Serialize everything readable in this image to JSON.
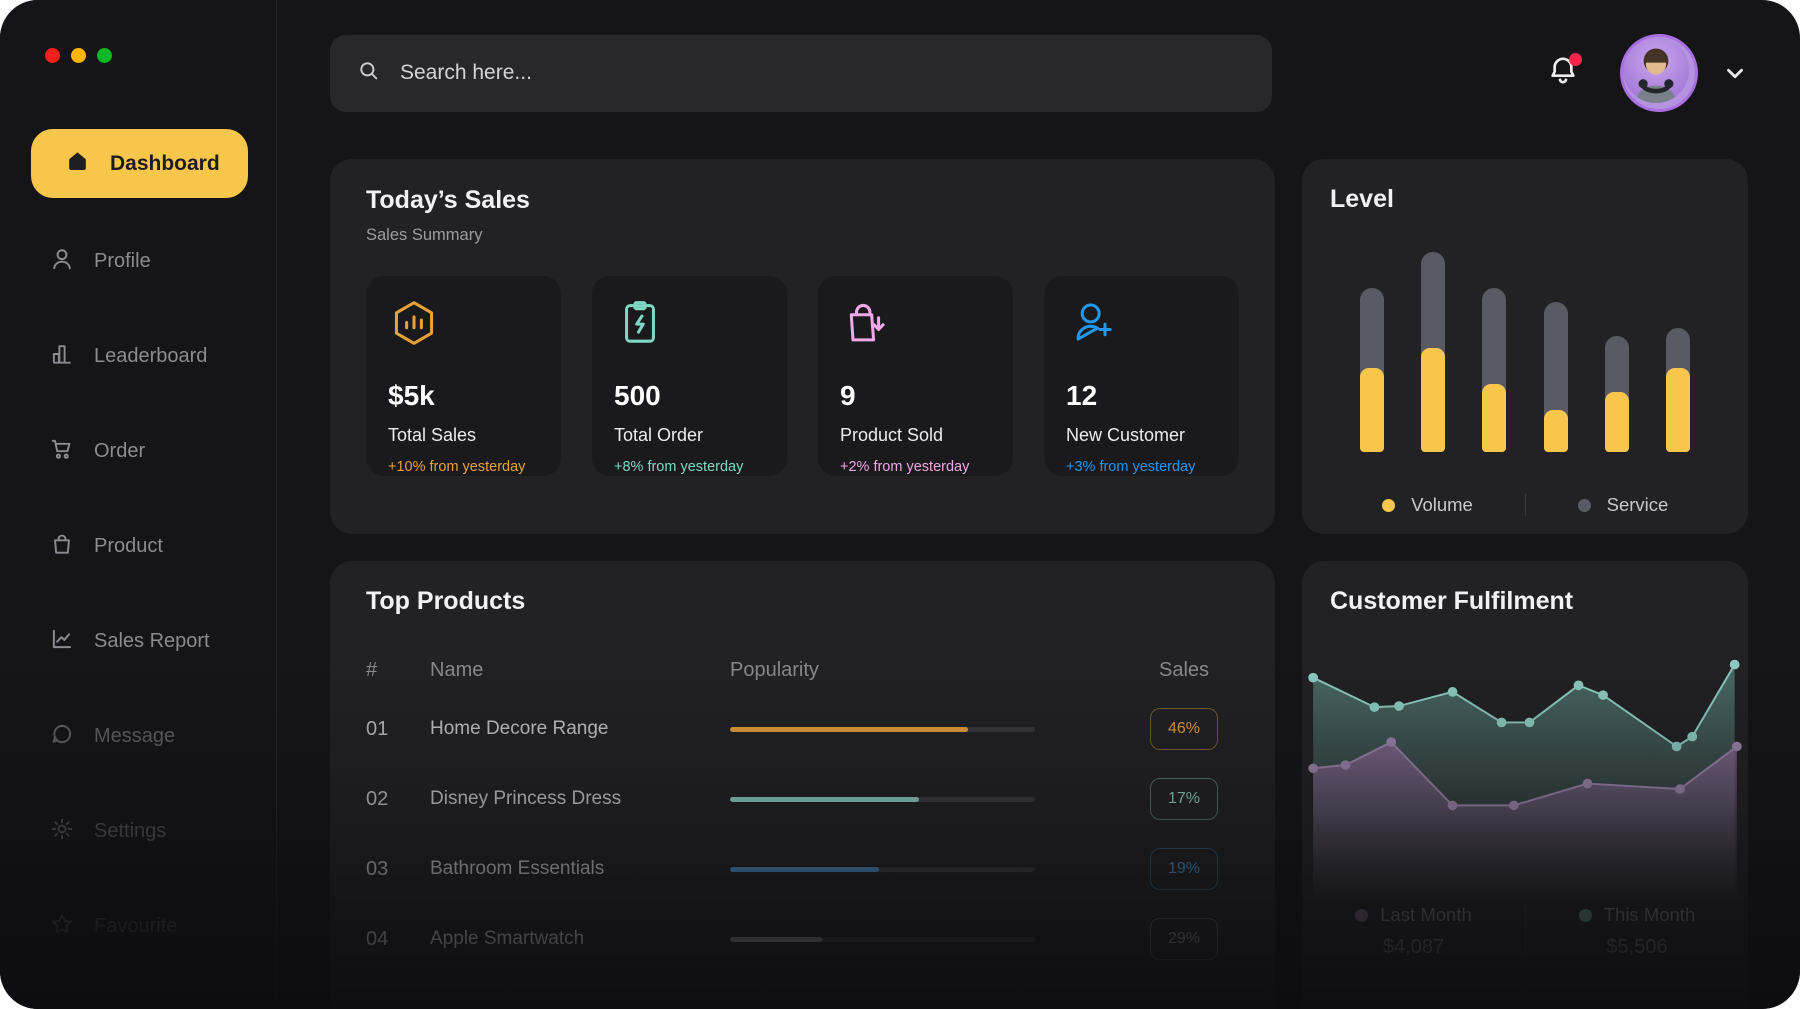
{
  "window": {
    "traffic_lights": [
      "#F4201B",
      "#FFB402",
      "#0EB826"
    ]
  },
  "topbar": {
    "search_placeholder": "Search here...",
    "notification_has_badge": true
  },
  "sidebar": {
    "items": [
      {
        "label": "Dashboard",
        "active": true
      },
      {
        "label": "Profile"
      },
      {
        "label": "Leaderboard"
      },
      {
        "label": "Order"
      },
      {
        "label": "Product"
      },
      {
        "label": "Sales Report"
      },
      {
        "label": "Message"
      },
      {
        "label": "Settings"
      },
      {
        "label": "Favourite"
      }
    ]
  },
  "sales": {
    "title": "Today’s Sales",
    "subtitle": "Sales Summary",
    "cards": [
      {
        "value": "$5k",
        "label": "Total Sales",
        "delta": "+10% from yesterday",
        "color": "#E9A23B",
        "icon": "hexagon-chart-icon"
      },
      {
        "value": "500",
        "label": "Total Order",
        "delta": "+8% from yesterday",
        "color": "#7FD8C6",
        "icon": "order-clipboard-icon"
      },
      {
        "value": "9",
        "label": "Product Sold",
        "delta": "+2% from yesterday",
        "color": "#EFA8E8",
        "icon": "bag-arrow-icon"
      },
      {
        "value": "12",
        "label": "New Customer",
        "delta": "+3% from yesterday",
        "color": "#2297EC",
        "icon": "user-plus-icon"
      }
    ]
  },
  "level": {
    "title": "Level",
    "legend": [
      {
        "label": "Volume",
        "color": "#F8C64B"
      },
      {
        "label": "Service",
        "color": "#5A5A64"
      }
    ]
  },
  "top_products": {
    "title": "Top Products",
    "columns": [
      "#",
      "Name",
      "Popularity",
      "Sales"
    ],
    "rows": [
      {
        "num": "01",
        "name": "Home Decore Range",
        "popularity": 78,
        "sales": "46%",
        "color": "#E9A23B"
      },
      {
        "num": "02",
        "name": "Disney Princess Dress",
        "popularity": 62,
        "sales": "17%",
        "color": "#8FD0C6"
      },
      {
        "num": "03",
        "name": "Bathroom Essentials",
        "popularity": 49,
        "sales": "19%",
        "color": "#4E8EC9"
      },
      {
        "num": "04",
        "name": "Apple Smartwatch",
        "popularity": 30,
        "sales": "29%",
        "color": "#8A8A92"
      }
    ]
  },
  "fulfilment": {
    "title": "Customer Fulfilment",
    "legend": [
      {
        "label": "Last Month",
        "value": "$4,087",
        "color": "#9C85AB"
      },
      {
        "label": "This Month",
        "value": "$5,506",
        "color": "#8FCFC5"
      }
    ]
  },
  "chart_data": [
    {
      "type": "bar",
      "title": "Level",
      "stacked": true,
      "grid": false,
      "categories": [
        "1",
        "2",
        "3",
        "4",
        "5",
        "6"
      ],
      "series": [
        {
          "name": "Volume",
          "color": "#F8C64B",
          "values": [
            42,
            52,
            34,
            21,
            30,
            42
          ]
        },
        {
          "name": "Service",
          "color": "#5A5A64",
          "values": [
            40,
            48,
            48,
            54,
            28,
            20
          ]
        }
      ],
      "ylim": [
        0,
        100
      ],
      "legend_position": "bottom"
    },
    {
      "type": "area",
      "title": "Customer Fulfilment",
      "grid": false,
      "coordinate_space": "svg 400x240, y-down",
      "series": [
        {
          "name": "This Month",
          "total": "$5,506",
          "color": "#8FCFC5",
          "points": [
            [
              10,
              40
            ],
            [
              65,
              67
            ],
            [
              87,
              66
            ],
            [
              135,
              53
            ],
            [
              179,
              81
            ],
            [
              204,
              81
            ],
            [
              248,
              47
            ],
            [
              270,
              56
            ],
            [
              336,
              103
            ],
            [
              350,
              94
            ],
            [
              388,
              28
            ]
          ]
        },
        {
          "name": "Last Month",
          "total": "$4,087",
          "color": "#9C85AB",
          "points": [
            [
              10,
              123
            ],
            [
              39,
              120
            ],
            [
              80,
              99
            ],
            [
              135,
              157
            ],
            [
              190,
              157
            ],
            [
              256,
              137
            ],
            [
              339,
              142
            ],
            [
              390,
              103
            ]
          ]
        }
      ],
      "legend_position": "bottom"
    }
  ]
}
